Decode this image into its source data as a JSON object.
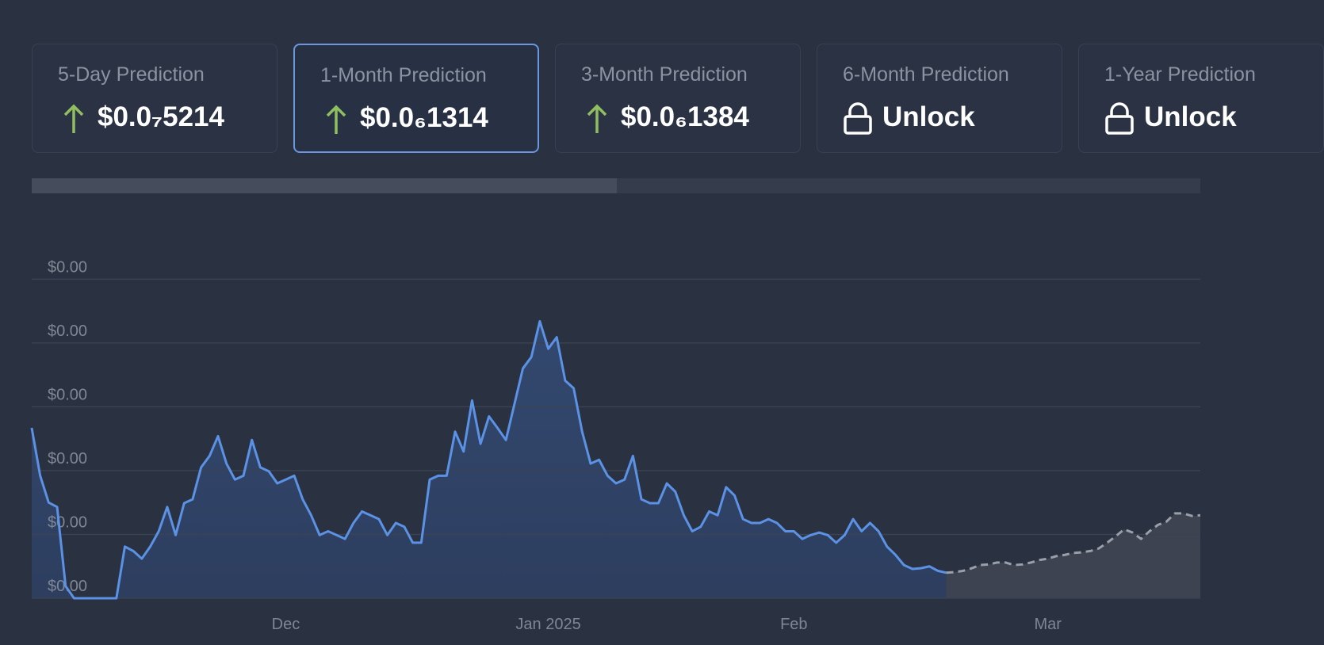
{
  "cards": [
    {
      "label": "5-Day Prediction",
      "value": "$0.0₇5214"
    },
    {
      "label": "1-Month Prediction",
      "value": "$0.0₆1314"
    },
    {
      "label": "3-Month Prediction",
      "value": "$0.0₆1384"
    },
    {
      "label": "6-Month Prediction",
      "value": "Unlock"
    },
    {
      "label": "1-Year Prediction",
      "value": "Unlock"
    }
  ],
  "chart_data": {
    "type": "line",
    "categories": [
      null,
      null,
      null,
      null,
      null,
      null,
      null,
      null,
      null,
      null,
      null,
      null,
      null,
      null,
      null,
      null,
      null,
      null,
      null,
      null,
      null,
      null,
      null,
      null,
      null,
      null,
      null,
      null,
      null,
      null,
      "Dec",
      null,
      null,
      null,
      null,
      null,
      null,
      null,
      null,
      null,
      null,
      null,
      null,
      null,
      null,
      null,
      null,
      null,
      null,
      null,
      null,
      null,
      null,
      null,
      null,
      null,
      null,
      null,
      null,
      null,
      null,
      "Jan 2025",
      null,
      null,
      null,
      null,
      null,
      null,
      null,
      null,
      null,
      null,
      null,
      null,
      null,
      null,
      null,
      null,
      null,
      null,
      null,
      null,
      null,
      null,
      null,
      null,
      null,
      null,
      null,
      null,
      "Feb",
      null,
      null,
      null,
      null,
      null,
      null,
      null,
      null,
      null,
      null,
      null,
      null,
      null,
      null,
      null,
      null,
      null,
      null,
      null,
      null,
      null,
      null,
      null,
      null,
      null,
      null,
      null,
      null,
      null,
      "Mar",
      null,
      null,
      null,
      null,
      null,
      null,
      null,
      null,
      null,
      null,
      null,
      null,
      null,
      null,
      null,
      null,
      null,
      null
    ],
    "series": [
      {
        "color": "#5b92e5",
        "dashed": false,
        "values": [
          2.67e-07,
          1.92e-07,
          1.5e-07,
          1.43e-07,
          1.9e-08,
          0,
          0,
          0,
          0,
          0,
          0,
          8.1e-08,
          7.4e-08,
          6.2e-08,
          8.1e-08,
          1.05e-07,
          1.43e-07,
          9.9e-08,
          1.49e-07,
          1.55e-07,
          2.05e-07,
          2.23e-07,
          2.54e-07,
          2.11e-07,
          1.86e-07,
          1.92e-07,
          2.48e-07,
          2.05e-07,
          1.99e-07,
          1.8e-07,
          1.86e-07,
          1.92e-07,
          1.55e-07,
          1.3e-07,
          9.9e-08,
          1.05e-07,
          9.9e-08,
          9.3e-08,
          1.18e-07,
          1.36e-07,
          1.3e-07,
          1.24e-07,
          9.9e-08,
          1.18e-07,
          1.12e-07,
          8.7e-08,
          8.7e-08,
          1.86e-07,
          1.92e-07,
          1.92e-07,
          2.61e-07,
          2.3e-07,
          3.1e-07,
          2.42e-07,
          2.85e-07,
          2.67e-07,
          2.48e-07,
          3.04e-07,
          3.6e-07,
          3.78e-07,
          4.34e-07,
          3.91e-07,
          4.09e-07,
          3.41e-07,
          3.29e-07,
          2.61e-07,
          2.11e-07,
          2.17e-07,
          1.92e-07,
          1.8e-07,
          1.86e-07,
          2.23e-07,
          1.55e-07,
          1.49e-07,
          1.49e-07,
          1.8e-07,
          1.67e-07,
          1.3e-07,
          1.05e-07,
          1.12e-07,
          1.36e-07,
          1.3e-07,
          1.74e-07,
          1.61e-07,
          1.24e-07,
          1.18e-07,
          1.18e-07,
          1.24e-07,
          1.18e-07,
          1.05e-07,
          1.05e-07,
          9.3e-08,
          9.9e-08,
          1.03e-07,
          9.9e-08,
          8.7e-08,
          9.9e-08,
          1.24e-07,
          1.05e-07,
          1.18e-07,
          1.05e-07,
          8.1e-08,
          6.8e-08,
          5.2e-08,
          4.6e-08,
          4.7e-08,
          5e-08,
          4.3e-08,
          4e-08,
          null,
          null,
          null,
          null,
          null,
          null,
          null,
          null,
          null,
          null,
          null,
          null,
          null,
          null,
          null,
          null,
          null,
          null,
          null,
          null,
          null,
          null,
          null,
          null,
          null,
          null,
          null,
          null,
          null,
          null
        ]
      },
      {
        "color": "#9a9fa8",
        "dashed": true,
        "values": [
          null,
          null,
          null,
          null,
          null,
          null,
          null,
          null,
          null,
          null,
          null,
          null,
          null,
          null,
          null,
          null,
          null,
          null,
          null,
          null,
          null,
          null,
          null,
          null,
          null,
          null,
          null,
          null,
          null,
          null,
          null,
          null,
          null,
          null,
          null,
          null,
          null,
          null,
          null,
          null,
          null,
          null,
          null,
          null,
          null,
          null,
          null,
          null,
          null,
          null,
          null,
          null,
          null,
          null,
          null,
          null,
          null,
          null,
          null,
          null,
          null,
          null,
          null,
          null,
          null,
          null,
          null,
          null,
          null,
          null,
          null,
          null,
          null,
          null,
          null,
          null,
          null,
          null,
          null,
          null,
          null,
          null,
          null,
          null,
          null,
          null,
          null,
          null,
          null,
          null,
          null,
          null,
          null,
          null,
          null,
          null,
          null,
          null,
          null,
          null,
          null,
          null,
          null,
          null,
          null,
          null,
          null,
          null,
          4e-08,
          4.1e-08,
          4.3e-08,
          4.7e-08,
          5.2e-08,
          5.3e-08,
          5.6e-08,
          5.6e-08,
          5.2e-08,
          5.3e-08,
          5.6e-08,
          6e-08,
          6.2e-08,
          6.6e-08,
          6.8e-08,
          7.1e-08,
          7.2e-08,
          7.4e-08,
          7.8e-08,
          8.7e-08,
          9.7e-08,
          1.08e-07,
          1.03e-07,
          9.3e-08,
          1.05e-07,
          1.15e-07,
          1.2e-07,
          1.33e-07,
          1.33e-07,
          1.29e-07,
          1.3e-07
        ]
      }
    ],
    "ylim": [
      0,
      5.6e-07
    ],
    "yticks": [
      {
        "value": 0,
        "label": "$0.00"
      },
      {
        "value": 1e-07,
        "label": "$0.00"
      },
      {
        "value": 2e-07,
        "label": "$0.00"
      },
      {
        "value": 3e-07,
        "label": "$0.00"
      },
      {
        "value": 4e-07,
        "label": "$0.00"
      },
      {
        "value": 5e-07,
        "label": "$0.00"
      }
    ],
    "grid": true
  }
}
